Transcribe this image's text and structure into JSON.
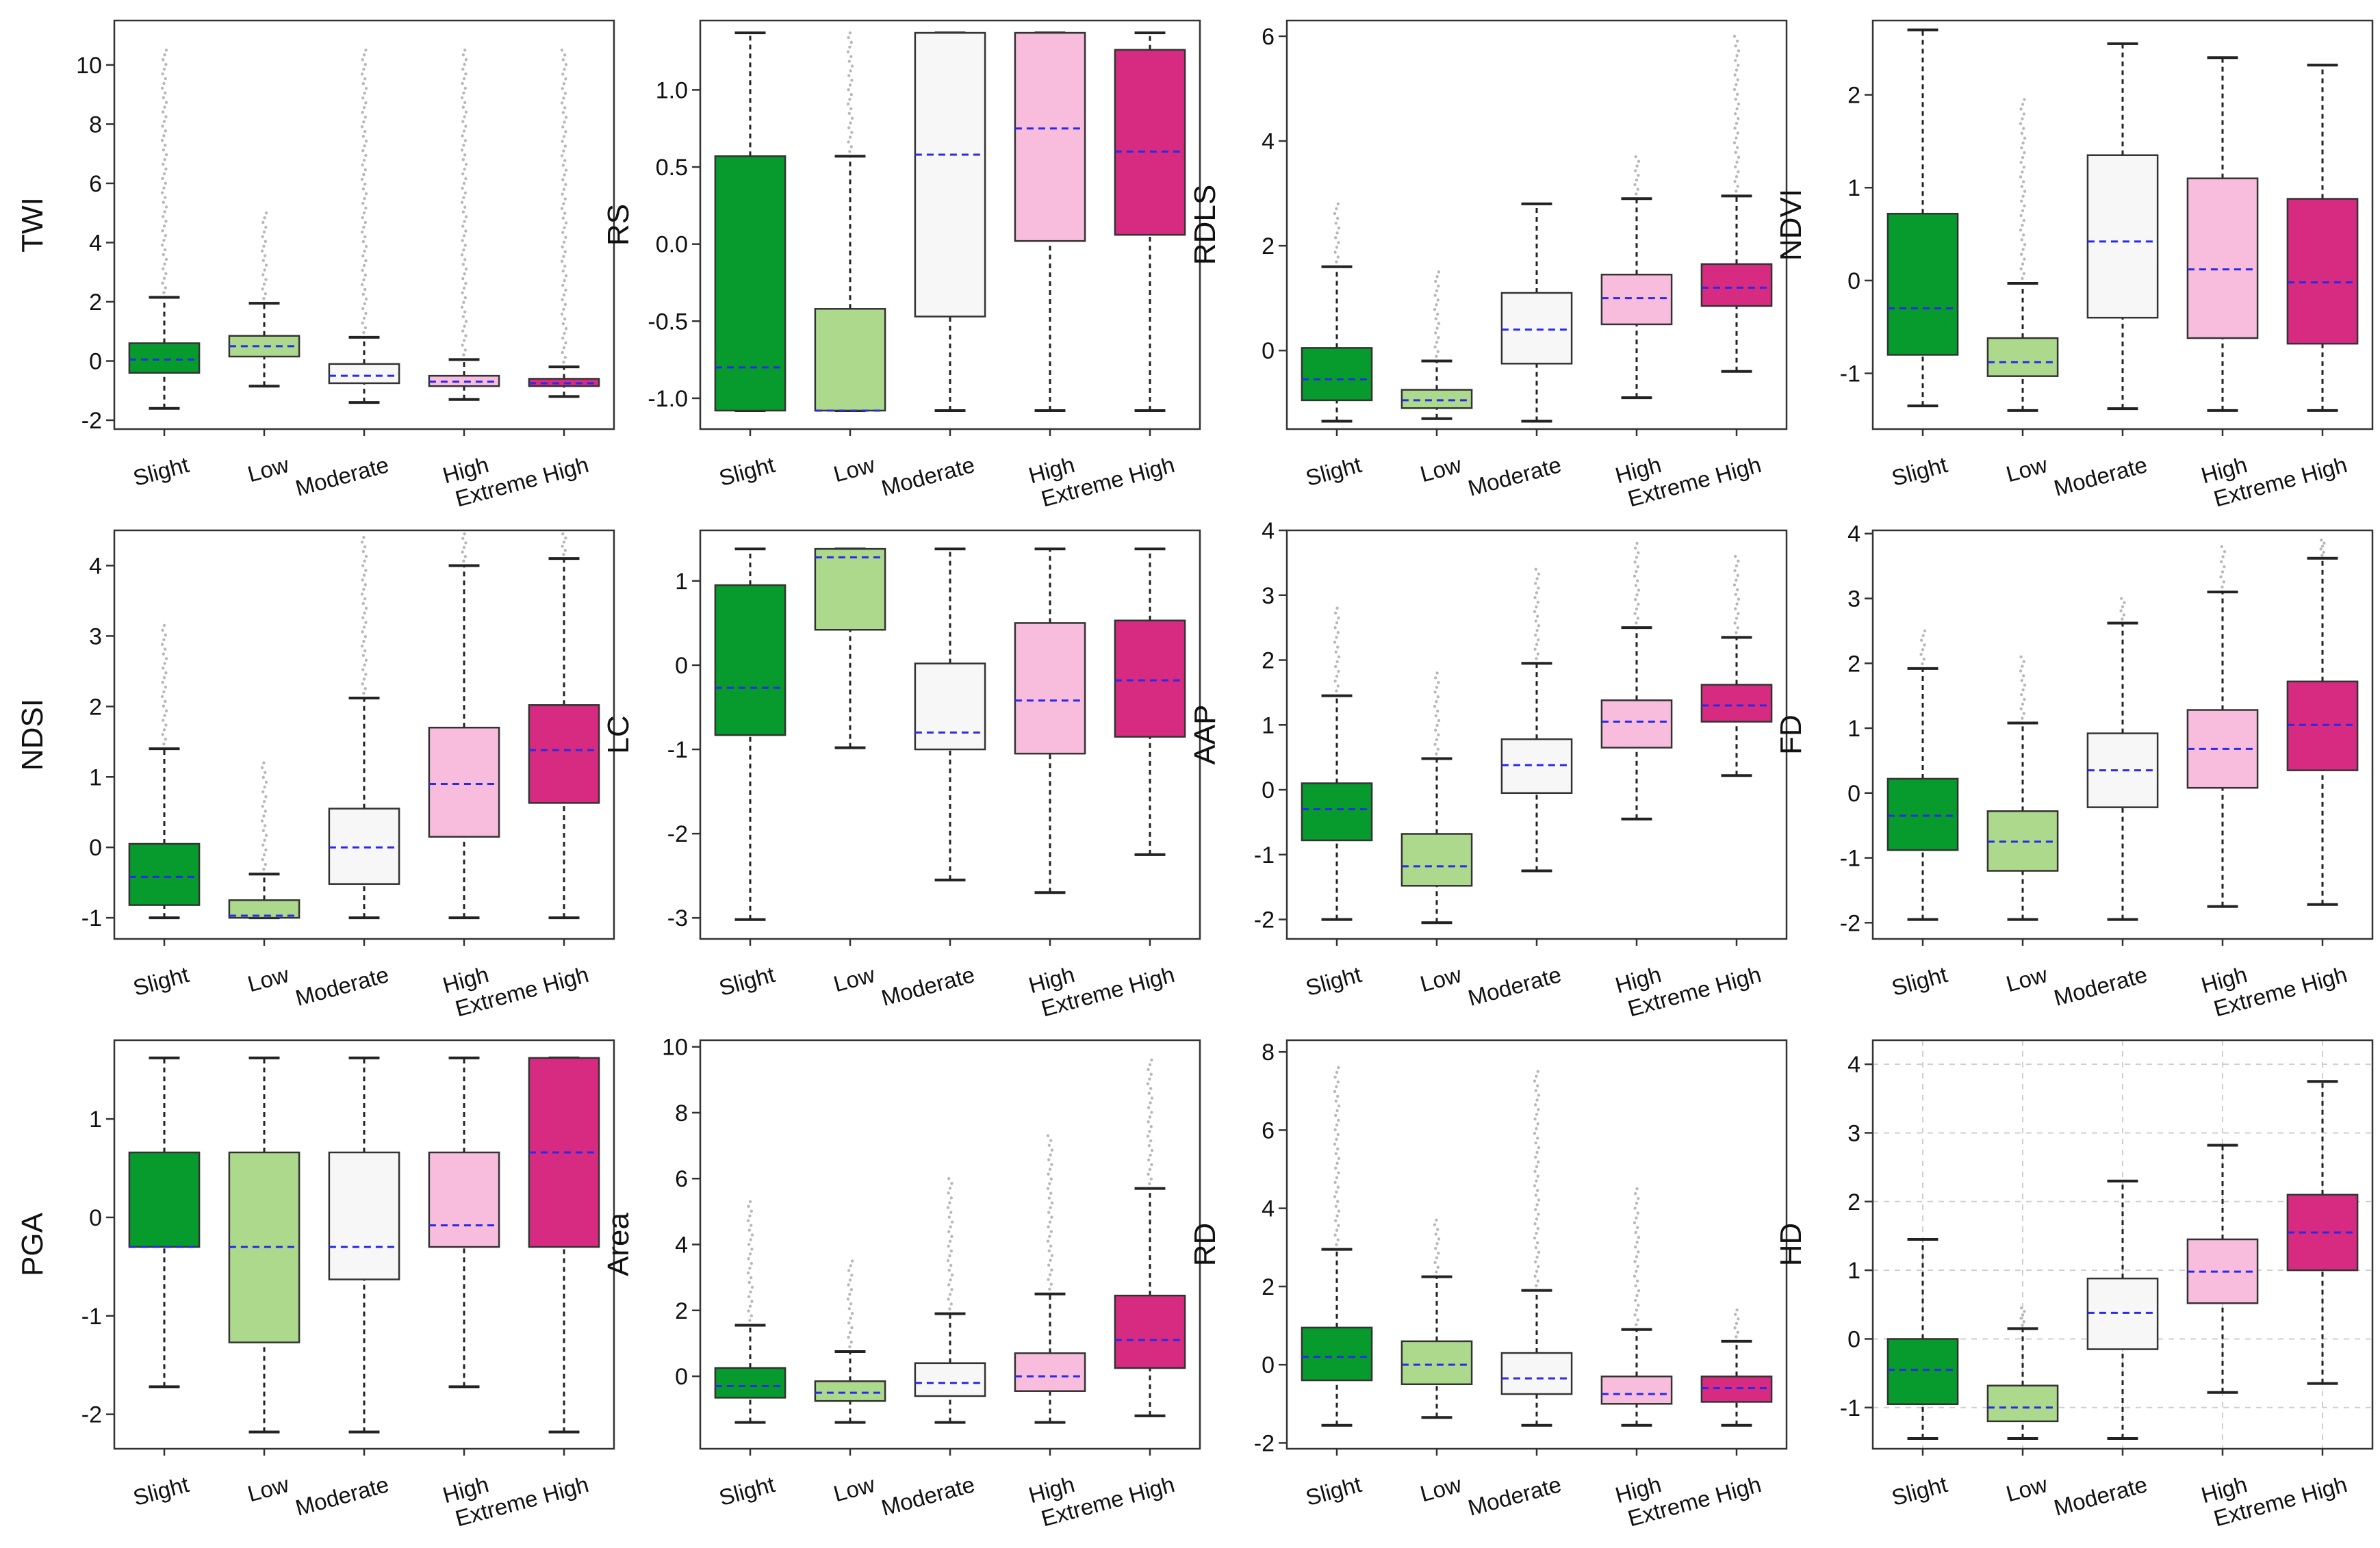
{
  "colors": {
    "Slight": "#079a2c",
    "Low": "#acd98c",
    "Moderate": "#f7f7f7",
    "High": "#f8bcdc",
    "Extreme High": "#d62b80"
  },
  "chart_data": [
    {
      "type": "box",
      "ylabel": "TWI",
      "ylim": [
        -2.3,
        11.5
      ],
      "yticks": [
        -2,
        0,
        2,
        4,
        6,
        8,
        10
      ],
      "categories": [
        "Slight",
        "Low",
        "Moderate",
        "High",
        "Extreme High"
      ],
      "boxes": [
        {
          "whisker_low": -1.6,
          "q1": -0.4,
          "median": 0.05,
          "q3": 0.6,
          "whisker_high": 2.15,
          "outlier_max": 10.5
        },
        {
          "whisker_low": -0.85,
          "q1": 0.15,
          "median": 0.5,
          "q3": 0.85,
          "whisker_high": 1.95,
          "outlier_max": 5.0
        },
        {
          "whisker_low": -1.4,
          "q1": -0.75,
          "median": -0.5,
          "q3": -0.1,
          "whisker_high": 0.8,
          "outlier_max": 10.5
        },
        {
          "whisker_low": -1.3,
          "q1": -0.85,
          "median": -0.7,
          "q3": -0.5,
          "whisker_high": 0.05,
          "outlier_max": 10.5
        },
        {
          "whisker_low": -1.2,
          "q1": -0.85,
          "median": -0.75,
          "q3": -0.6,
          "whisker_high": -0.2,
          "outlier_max": 10.5
        }
      ]
    },
    {
      "type": "box",
      "ylabel": "RS",
      "ylim": [
        -1.2,
        1.45
      ],
      "yticks": [
        -1.0,
        -0.5,
        0.0,
        0.5,
        1.0
      ],
      "tick_labels": [
        "-1.0",
        "-0.5",
        "0.0",
        "0.5",
        "1.0"
      ],
      "categories": [
        "Slight",
        "Low",
        "Moderate",
        "High",
        "Extreme High"
      ],
      "boxes": [
        {
          "whisker_low": -1.08,
          "q1": -1.08,
          "median": -0.8,
          "q3": 0.57,
          "whisker_high": 1.37,
          "outlier_max": null
        },
        {
          "whisker_low": -1.08,
          "q1": -1.08,
          "median": -1.08,
          "q3": -0.42,
          "whisker_high": 0.57,
          "outlier_max": 1.37
        },
        {
          "whisker_low": -1.08,
          "q1": -0.47,
          "median": 0.58,
          "q3": 1.37,
          "whisker_high": 1.37,
          "outlier_max": null
        },
        {
          "whisker_low": -1.08,
          "q1": 0.02,
          "median": 0.75,
          "q3": 1.37,
          "whisker_high": 1.37,
          "outlier_max": null
        },
        {
          "whisker_low": -1.08,
          "q1": 0.06,
          "median": 0.6,
          "q3": 1.26,
          "whisker_high": 1.37,
          "outlier_max": null
        }
      ]
    },
    {
      "type": "box",
      "ylabel": "RDLS",
      "ylim": [
        -1.5,
        6.3
      ],
      "yticks": [
        0,
        2,
        4,
        6
      ],
      "categories": [
        "Slight",
        "Low",
        "Moderate",
        "High",
        "Extreme High"
      ],
      "boxes": [
        {
          "whisker_low": -1.35,
          "q1": -0.95,
          "median": -0.55,
          "q3": 0.05,
          "whisker_high": 1.6,
          "outlier_max": 2.8
        },
        {
          "whisker_low": -1.3,
          "q1": -1.1,
          "median": -0.95,
          "q3": -0.75,
          "whisker_high": -0.2,
          "outlier_max": 1.5
        },
        {
          "whisker_low": -1.35,
          "q1": -0.25,
          "median": 0.4,
          "q3": 1.1,
          "whisker_high": 2.8,
          "outlier_max": null
        },
        {
          "whisker_low": -0.9,
          "q1": 0.5,
          "median": 1.0,
          "q3": 1.45,
          "whisker_high": 2.9,
          "outlier_max": 3.7
        },
        {
          "whisker_low": -0.4,
          "q1": 0.85,
          "median": 1.2,
          "q3": 1.65,
          "whisker_high": 2.95,
          "outlier_max": 6.0
        }
      ]
    },
    {
      "type": "box",
      "ylabel": "NDVI",
      "ylim": [
        -1.6,
        2.8
      ],
      "yticks": [
        -1,
        0,
        1,
        2
      ],
      "categories": [
        "Slight",
        "Low",
        "Moderate",
        "High",
        "Extreme High"
      ],
      "boxes": [
        {
          "whisker_low": -1.35,
          "q1": -0.8,
          "median": -0.3,
          "q3": 0.72,
          "whisker_high": 2.7,
          "outlier_max": null
        },
        {
          "whisker_low": -1.4,
          "q1": -1.03,
          "median": -0.88,
          "q3": -0.62,
          "whisker_high": -0.03,
          "outlier_max": 1.95
        },
        {
          "whisker_low": -1.38,
          "q1": -0.4,
          "median": 0.42,
          "q3": 1.35,
          "whisker_high": 2.55,
          "outlier_max": null
        },
        {
          "whisker_low": -1.4,
          "q1": -0.62,
          "median": 0.12,
          "q3": 1.1,
          "whisker_high": 2.4,
          "outlier_max": null
        },
        {
          "whisker_low": -1.4,
          "q1": -0.68,
          "median": -0.02,
          "q3": 0.88,
          "whisker_high": 2.32,
          "outlier_max": null
        }
      ]
    },
    {
      "type": "box",
      "ylabel": "NDSI",
      "ylim": [
        -1.3,
        4.5
      ],
      "yticks": [
        -1,
        0,
        1,
        2,
        3,
        4
      ],
      "categories": [
        "Slight",
        "Low",
        "Moderate",
        "High",
        "Extreme High"
      ],
      "boxes": [
        {
          "whisker_low": -1.0,
          "q1": -0.82,
          "median": -0.42,
          "q3": 0.05,
          "whisker_high": 1.4,
          "outlier_max": 3.15
        },
        {
          "whisker_low": -1.0,
          "q1": -1.0,
          "median": -0.97,
          "q3": -0.75,
          "whisker_high": -0.38,
          "outlier_max": 1.2
        },
        {
          "whisker_low": -1.0,
          "q1": -0.52,
          "median": 0.0,
          "q3": 0.55,
          "whisker_high": 2.12,
          "outlier_max": 4.4
        },
        {
          "whisker_low": -1.0,
          "q1": 0.15,
          "median": 0.9,
          "q3": 1.7,
          "whisker_high": 4.0,
          "outlier_max": 4.45
        },
        {
          "whisker_low": -1.0,
          "q1": 0.63,
          "median": 1.38,
          "q3": 2.02,
          "whisker_high": 4.1,
          "outlier_max": 4.45
        }
      ]
    },
    {
      "type": "box",
      "ylabel": "LC",
      "ylim": [
        -3.25,
        1.6
      ],
      "yticks": [
        -3,
        -2,
        -1,
        0,
        1
      ],
      "categories": [
        "Slight",
        "Low",
        "Moderate",
        "High",
        "Extreme High"
      ],
      "boxes": [
        {
          "whisker_low": -3.02,
          "q1": -0.83,
          "median": -0.27,
          "q3": 0.95,
          "whisker_high": 1.38,
          "outlier_max": null
        },
        {
          "whisker_low": -0.98,
          "q1": 0.42,
          "median": 1.28,
          "q3": 1.38,
          "whisker_high": 1.38,
          "outlier_max": null
        },
        {
          "whisker_low": -2.55,
          "q1": -1.0,
          "median": -0.8,
          "q3": 0.02,
          "whisker_high": 1.38,
          "outlier_max": null
        },
        {
          "whisker_low": -2.7,
          "q1": -1.05,
          "median": -0.42,
          "q3": 0.5,
          "whisker_high": 1.38,
          "outlier_max": null
        },
        {
          "whisker_low": -2.25,
          "q1": -0.85,
          "median": -0.18,
          "q3": 0.53,
          "whisker_high": 1.38,
          "outlier_max": null
        }
      ]
    },
    {
      "type": "box",
      "ylabel": "AAP",
      "ylim": [
        -2.3,
        4.0
      ],
      "yticks": [
        -2,
        -1,
        0,
        1,
        2,
        3,
        4
      ],
      "categories": [
        "Slight",
        "Low",
        "Moderate",
        "High",
        "Extreme High"
      ],
      "boxes": [
        {
          "whisker_low": -2.0,
          "q1": -0.78,
          "median": -0.3,
          "q3": 0.1,
          "whisker_high": 1.45,
          "outlier_max": 2.8
        },
        {
          "whisker_low": -2.05,
          "q1": -1.48,
          "median": -1.18,
          "q3": -0.68,
          "whisker_high": 0.48,
          "outlier_max": 1.8
        },
        {
          "whisker_low": -1.25,
          "q1": -0.05,
          "median": 0.38,
          "q3": 0.78,
          "whisker_high": 1.95,
          "outlier_max": 3.4
        },
        {
          "whisker_low": -0.45,
          "q1": 0.65,
          "median": 1.05,
          "q3": 1.38,
          "whisker_high": 2.5,
          "outlier_max": 3.8
        },
        {
          "whisker_low": 0.22,
          "q1": 1.05,
          "median": 1.3,
          "q3": 1.62,
          "whisker_high": 2.35,
          "outlier_max": 3.6
        }
      ]
    },
    {
      "type": "box",
      "ylabel": "FD",
      "ylim": [
        -2.25,
        4.05
      ],
      "yticks": [
        -2,
        -1,
        0,
        1,
        2,
        3,
        4
      ],
      "categories": [
        "Slight",
        "Low",
        "Moderate",
        "High",
        "Extreme High"
      ],
      "boxes": [
        {
          "whisker_low": -1.95,
          "q1": -0.88,
          "median": -0.35,
          "q3": 0.22,
          "whisker_high": 1.92,
          "outlier_max": 2.5
        },
        {
          "whisker_low": -1.95,
          "q1": -1.2,
          "median": -0.75,
          "q3": -0.28,
          "whisker_high": 1.08,
          "outlier_max": 2.1
        },
        {
          "whisker_low": -1.95,
          "q1": -0.22,
          "median": 0.35,
          "q3": 0.92,
          "whisker_high": 2.62,
          "outlier_max": 3.0
        },
        {
          "whisker_low": -1.75,
          "q1": 0.08,
          "median": 0.68,
          "q3": 1.28,
          "whisker_high": 3.1,
          "outlier_max": 3.8
        },
        {
          "whisker_low": -1.72,
          "q1": 0.35,
          "median": 1.05,
          "q3": 1.72,
          "whisker_high": 3.62,
          "outlier_max": 3.9
        }
      ]
    },
    {
      "type": "box",
      "ylabel": "PGA",
      "ylim": [
        -2.35,
        1.8
      ],
      "yticks": [
        -2,
        -1,
        0,
        1
      ],
      "categories": [
        "Slight",
        "Low",
        "Moderate",
        "High",
        "Extreme High"
      ],
      "boxes": [
        {
          "whisker_low": -1.72,
          "q1": -0.3,
          "median": -0.3,
          "q3": 0.66,
          "whisker_high": 1.62,
          "outlier_max": null
        },
        {
          "whisker_low": -2.18,
          "q1": -1.27,
          "median": -0.3,
          "q3": 0.66,
          "whisker_high": 1.62,
          "outlier_max": null
        },
        {
          "whisker_low": -2.18,
          "q1": -0.63,
          "median": -0.3,
          "q3": 0.66,
          "whisker_high": 1.62,
          "outlier_max": null
        },
        {
          "whisker_low": -1.72,
          "q1": -0.3,
          "median": -0.08,
          "q3": 0.66,
          "whisker_high": 1.62,
          "outlier_max": null
        },
        {
          "whisker_low": -2.18,
          "q1": -0.3,
          "median": 0.66,
          "q3": 1.62,
          "whisker_high": 1.62,
          "outlier_max": null
        }
      ]
    },
    {
      "type": "box",
      "ylabel": "Area",
      "ylim": [
        -2.2,
        10.2
      ],
      "yticks": [
        0,
        2,
        4,
        6,
        8,
        10
      ],
      "categories": [
        "Slight",
        "Low",
        "Moderate",
        "High",
        "Extreme High"
      ],
      "boxes": [
        {
          "whisker_low": -1.4,
          "q1": -0.65,
          "median": -0.3,
          "q3": 0.25,
          "whisker_high": 1.55,
          "outlier_max": 5.3
        },
        {
          "whisker_low": -1.4,
          "q1": -0.75,
          "median": -0.5,
          "q3": -0.15,
          "whisker_high": 0.75,
          "outlier_max": 3.5
        },
        {
          "whisker_low": -1.4,
          "q1": -0.6,
          "median": -0.2,
          "q3": 0.4,
          "whisker_high": 1.9,
          "outlier_max": 6.0
        },
        {
          "whisker_low": -1.4,
          "q1": -0.45,
          "median": 0.0,
          "q3": 0.7,
          "whisker_high": 2.5,
          "outlier_max": 7.3
        },
        {
          "whisker_low": -1.2,
          "q1": 0.25,
          "median": 1.1,
          "q3": 2.45,
          "whisker_high": 5.7,
          "outlier_max": 9.6
        }
      ]
    },
    {
      "type": "box",
      "ylabel": "RD",
      "ylim": [
        -2.15,
        8.3
      ],
      "yticks": [
        -2,
        0,
        2,
        4,
        6,
        8
      ],
      "categories": [
        "Slight",
        "Low",
        "Moderate",
        "High",
        "Extreme High"
      ],
      "boxes": [
        {
          "whisker_low": -1.55,
          "q1": -0.4,
          "median": 0.2,
          "q3": 0.95,
          "whisker_high": 2.95,
          "outlier_max": 7.6
        },
        {
          "whisker_low": -1.35,
          "q1": -0.5,
          "median": 0.0,
          "q3": 0.6,
          "whisker_high": 2.25,
          "outlier_max": 3.7
        },
        {
          "whisker_low": -1.55,
          "q1": -0.75,
          "median": -0.35,
          "q3": 0.3,
          "whisker_high": 1.9,
          "outlier_max": 7.5
        },
        {
          "whisker_low": -1.55,
          "q1": -1.0,
          "median": -0.75,
          "q3": -0.3,
          "whisker_high": 0.9,
          "outlier_max": 4.5
        },
        {
          "whisker_low": -1.55,
          "q1": -0.95,
          "median": -0.6,
          "q3": -0.3,
          "whisker_high": 0.6,
          "outlier_max": 1.4
        }
      ]
    },
    {
      "type": "box",
      "ylabel": "HD",
      "ylim": [
        -1.6,
        4.35
      ],
      "yticks": [
        -1,
        0,
        1,
        2,
        3,
        4
      ],
      "grid": true,
      "categories": [
        "Slight",
        "Low",
        "Moderate",
        "High",
        "Extreme High"
      ],
      "boxes": [
        {
          "whisker_low": -1.45,
          "q1": -0.95,
          "median": -0.45,
          "q3": 0.0,
          "whisker_high": 1.45,
          "outlier_max": null
        },
        {
          "whisker_low": -1.45,
          "q1": -1.2,
          "median": -1.0,
          "q3": -0.68,
          "whisker_high": 0.15,
          "outlier_max": 0.45
        },
        {
          "whisker_low": -1.45,
          "q1": -0.15,
          "median": 0.38,
          "q3": 0.88,
          "whisker_high": 2.3,
          "outlier_max": null
        },
        {
          "whisker_low": -0.78,
          "q1": 0.52,
          "median": 0.98,
          "q3": 1.45,
          "whisker_high": 2.82,
          "outlier_max": null
        },
        {
          "whisker_low": -0.65,
          "q1": 1.0,
          "median": 1.55,
          "q3": 2.1,
          "whisker_high": 3.75,
          "outlier_max": null
        }
      ]
    }
  ]
}
